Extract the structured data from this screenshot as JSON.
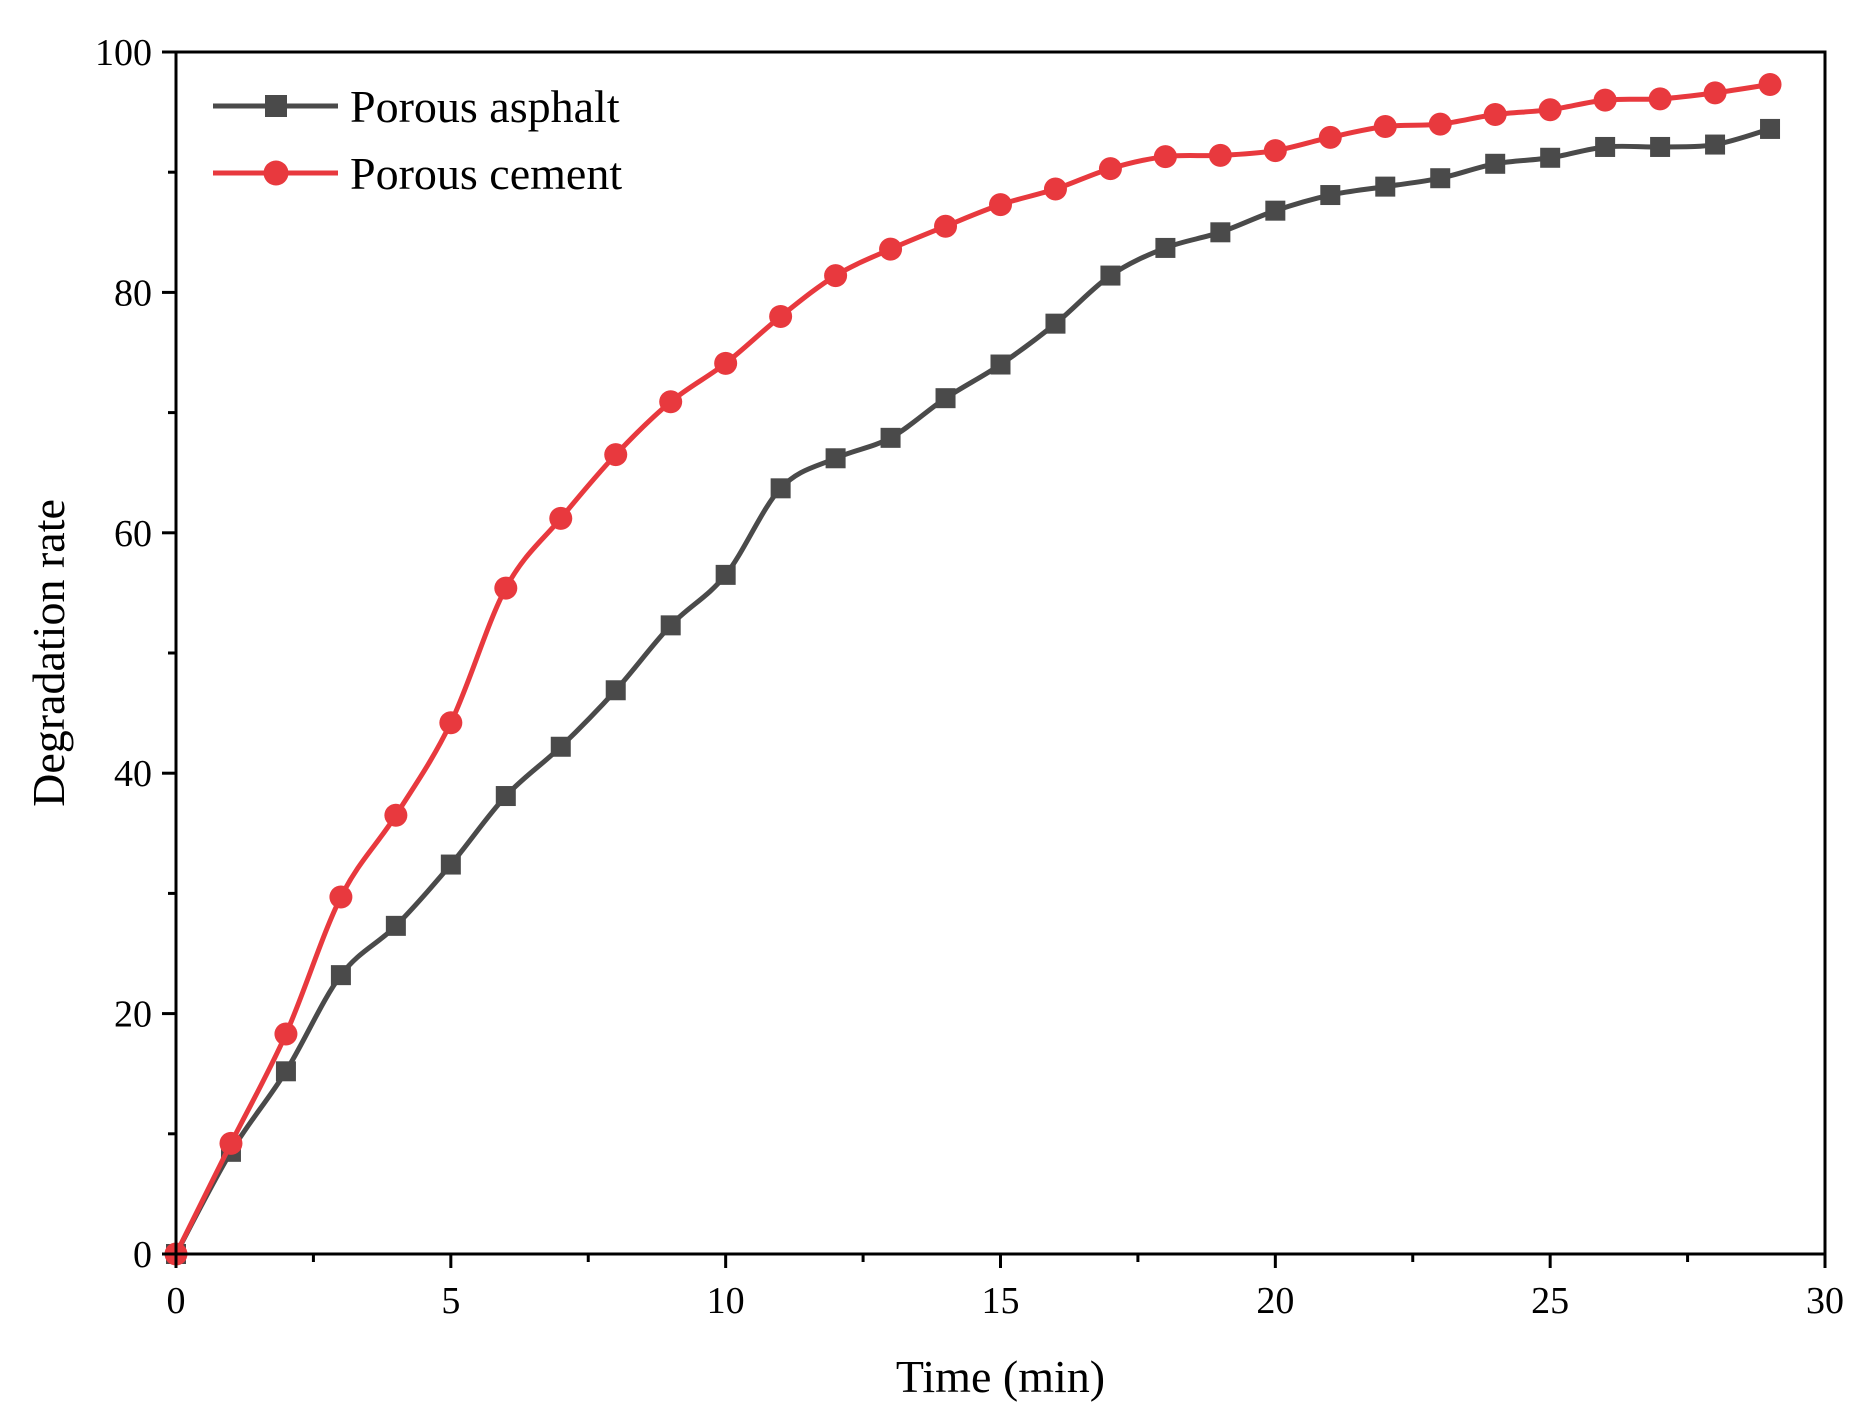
{
  "chart_data": {
    "type": "line",
    "title": "",
    "xlabel": "Time (min)",
    "ylabel": "Degradation rate",
    "xlim": [
      0,
      30
    ],
    "ylim": [
      0,
      100
    ],
    "x_major_ticks": [
      0,
      5,
      10,
      15,
      20,
      25,
      30
    ],
    "y_major_ticks": [
      0,
      20,
      40,
      60,
      80,
      100
    ],
    "x_tick_labels": [
      "0",
      "5",
      "10",
      "15",
      "20",
      "25",
      "30"
    ],
    "y_tick_labels": [
      "0",
      "20",
      "40",
      "60",
      "80",
      "100"
    ],
    "grid": false,
    "legend_position": "top-left",
    "x": [
      0,
      1,
      2,
      3,
      4,
      5,
      6,
      7,
      8,
      9,
      10,
      11,
      12,
      13,
      14,
      15,
      16,
      17,
      18,
      19,
      20,
      21,
      22,
      23,
      24,
      25,
      26,
      27,
      28,
      29
    ],
    "series": [
      {
        "name": "Porous asphalt",
        "color": "#4a4a4a",
        "marker": "square",
        "values": [
          0,
          8.5,
          15.2,
          23.2,
          27.3,
          32.4,
          38.1,
          42.2,
          46.9,
          52.3,
          56.5,
          63.7,
          66.2,
          67.9,
          71.2,
          74.0,
          77.4,
          81.4,
          83.7,
          85.0,
          86.8,
          88.1,
          88.8,
          89.5,
          90.7,
          91.2,
          92.1,
          92.1,
          92.3,
          93.6
        ]
      },
      {
        "name": "Porous cement",
        "color": "#e8393e",
        "marker": "circle",
        "values": [
          0,
          9.2,
          18.3,
          29.7,
          36.5,
          44.2,
          55.4,
          61.2,
          66.5,
          70.9,
          74.1,
          78.0,
          81.4,
          83.6,
          85.5,
          87.3,
          88.6,
          90.3,
          91.3,
          91.4,
          91.8,
          92.9,
          93.8,
          94.0,
          94.8,
          95.2,
          96.0,
          96.1,
          96.6,
          97.3
        ]
      }
    ]
  }
}
